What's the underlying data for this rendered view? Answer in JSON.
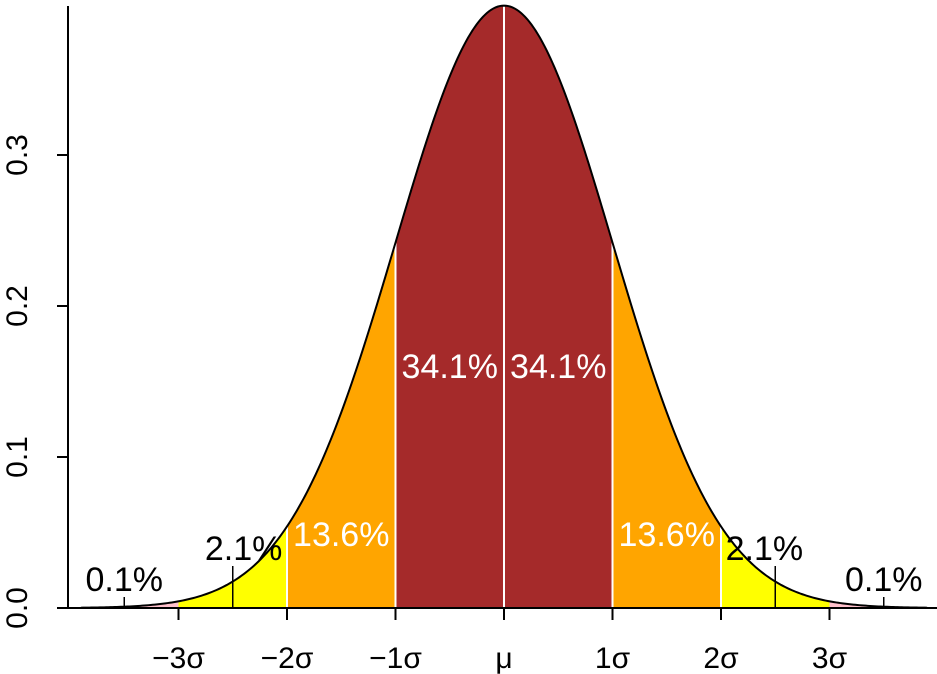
{
  "chart_data": {
    "type": "area",
    "title": "",
    "xlabel": "",
    "ylabel": "",
    "curve": "normal probability density, mean 0, standard deviation 1",
    "xlim": [
      -3.9,
      3.9
    ],
    "ylim": [
      0,
      0.4
    ],
    "y_ticks": [
      {
        "value": 0.0,
        "label": "0.0"
      },
      {
        "value": 0.1,
        "label": "0.1"
      },
      {
        "value": 0.2,
        "label": "0.2"
      },
      {
        "value": 0.3,
        "label": "0.3"
      }
    ],
    "x_ticks": [
      {
        "value": -3,
        "label": "−3σ"
      },
      {
        "value": -2,
        "label": "−2σ"
      },
      {
        "value": -1,
        "label": "−1σ"
      },
      {
        "value": 0,
        "label": "μ"
      },
      {
        "value": 1,
        "label": "1σ"
      },
      {
        "value": 2,
        "label": "2σ"
      },
      {
        "value": 3,
        "label": "3σ"
      }
    ],
    "regions": [
      {
        "from": -3.9,
        "to": -3,
        "label": "0.1%",
        "color": "#ffc0cb"
      },
      {
        "from": -3,
        "to": -2,
        "label": "2.1%",
        "color": "#ffff00"
      },
      {
        "from": -2,
        "to": -1,
        "label": "13.6%",
        "color": "#ffa500"
      },
      {
        "from": -1,
        "to": 0,
        "label": "34.1%",
        "color": "#a52a2a"
      },
      {
        "from": 0,
        "to": 1,
        "label": "34.1%",
        "color": "#a52a2a"
      },
      {
        "from": 1,
        "to": 2,
        "label": "13.6%",
        "color": "#ffa500"
      },
      {
        "from": 2,
        "to": 3,
        "label": "2.1%",
        "color": "#ffff00"
      },
      {
        "from": 3,
        "to": 3.9,
        "label": "0.1%",
        "color": "#ffc0cb"
      }
    ],
    "grid": false,
    "legend": "none"
  }
}
